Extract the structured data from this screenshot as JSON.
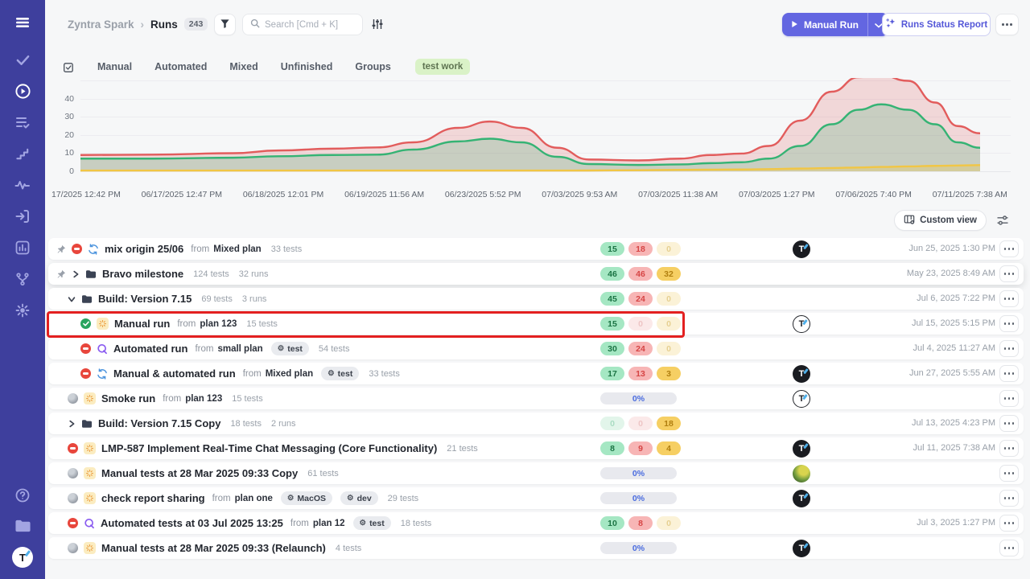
{
  "app": {
    "accent": "#6366e1",
    "sidebar_bg": "#3e3f9d",
    "page_bg": "#f6f7f8"
  },
  "sidebar": {
    "icons": [
      "menu-icon",
      "tasks-check-icon",
      "runs-play-icon",
      "test-cases-icon",
      "steps-icon",
      "activity-icon",
      "imports-icon",
      "reports-icon",
      "workflows-icon",
      "settings-gear-icon",
      "help-icon",
      "projects-folder-icon"
    ],
    "active_item": "runs",
    "avatar_letter": "T"
  },
  "header": {
    "breadcrumb": {
      "project": "Zyntra Spark",
      "separator": "›",
      "page": "Runs",
      "count": "243"
    },
    "search": {
      "placeholder": "Search [Cmd + K]"
    },
    "actions": {
      "manual_run": "Manual Run",
      "runs_status_report": "Runs Status Report"
    }
  },
  "tabs": {
    "items": [
      "Manual",
      "Automated",
      "Mixed",
      "Unfinished",
      "Groups"
    ],
    "highlight_tag": "test work"
  },
  "chart_data": {
    "type": "area",
    "stacked": false,
    "grid": true,
    "ylim": [
      0,
      50
    ],
    "y_ticks": [
      "40",
      "30",
      "20",
      "10",
      "0"
    ],
    "x_tick_labels": [
      "17/2025 12:42 PM",
      "06/17/2025 12:47 PM",
      "06/18/2025 12:01 PM",
      "06/19/2025 11:56 AM",
      "06/23/2025 5:52 PM",
      "07/03/2025 9:53 AM",
      "07/03/2025 11:38 AM",
      "07/03/2025 1:27 PM",
      "07/06/2025 7:40 PM",
      "07/11/2025 7:38 AM"
    ],
    "x": [
      0,
      0.08,
      0.17,
      0.22,
      0.28,
      0.33,
      0.37,
      0.42,
      0.455,
      0.49,
      0.53,
      0.565,
      0.62,
      0.667,
      0.7,
      0.735,
      0.765,
      0.8,
      0.835,
      0.865,
      0.89,
      0.92,
      0.95,
      0.975,
      1.0
    ],
    "series": [
      {
        "name": "failed",
        "color": "#e25c5c",
        "fill": "rgba(226,92,92,0.20)",
        "values": [
          9,
          9.2,
          10,
          11.5,
          12.5,
          13.2,
          16,
          24,
          27.5,
          24,
          13,
          6.5,
          6,
          7,
          9,
          9.8,
          14,
          28,
          44,
          52,
          53,
          50,
          38,
          25,
          21
        ]
      },
      {
        "name": "passed",
        "color": "#35b374",
        "fill": "rgba(53,179,116,0.22)",
        "values": [
          7,
          7,
          7.5,
          8.3,
          9,
          9.2,
          12,
          16.5,
          18,
          16,
          8,
          4,
          3.5,
          3.8,
          4.5,
          5,
          7,
          14,
          26,
          34,
          37,
          34,
          26,
          16,
          13
        ]
      },
      {
        "name": "untested",
        "color": "#f1c645",
        "fill": "rgba(241,198,69,0.30)",
        "values": [
          0.4,
          0.4,
          0.4,
          0.4,
          0.4,
          0.4,
          0.4,
          0.4,
          0.4,
          0.4,
          0.4,
          0.45,
          0.6,
          0.8,
          0.9,
          1.0,
          1.2,
          1.5,
          1.8,
          2.1,
          2.4,
          2.7,
          3.0,
          3.2,
          3.4
        ]
      }
    ]
  },
  "view_toolbar": {
    "custom_view": "Custom view"
  },
  "run_list": {
    "from_label": "from",
    "avatar_letter": "T",
    "status_colors": {
      "passed": "#29a45f",
      "failed": "#e8463c",
      "untested": "#f1c645"
    },
    "rows": [
      {
        "pinned": true,
        "status": "failed",
        "kind": "mixed",
        "title": "mix origin 25/06",
        "from_plan": "Mixed plan",
        "tests": "33 tests",
        "counts": [
          {
            "v": "15",
            "c": "g"
          },
          {
            "v": "18",
            "c": "r"
          },
          {
            "v": "0",
            "c": "y",
            "f": true
          }
        ],
        "avatar": "dark",
        "date": "Jun 25, 2025 1:30 PM"
      },
      {
        "pinned": true,
        "expand": "right",
        "kind": "folder",
        "title": "Bravo milestone",
        "tests": "124 tests",
        "runs": "32 runs",
        "hover": true,
        "counts": [
          {
            "v": "46",
            "c": "g"
          },
          {
            "v": "46",
            "c": "r"
          },
          {
            "v": "32",
            "c": "y"
          }
        ],
        "date": "May 23, 2025 8:49 AM"
      },
      {
        "expand": "down",
        "kind": "folder",
        "title": "Build: Version 7.15",
        "tests": "69 tests",
        "runs": "3 runs",
        "counts": [
          {
            "v": "45",
            "c": "g"
          },
          {
            "v": "24",
            "c": "r"
          },
          {
            "v": "0",
            "c": "y",
            "f": true
          }
        ],
        "date": "Jul 6, 2025 7:22 PM"
      },
      {
        "indent": 1,
        "status": "passed",
        "kind": "manual",
        "title": "Manual run",
        "from_plan": "plan 123",
        "tests": "15 tests",
        "highlighted": true,
        "counts": [
          {
            "v": "15",
            "c": "g"
          },
          {
            "v": "0",
            "c": "r",
            "f": true
          },
          {
            "v": "0",
            "c": "y",
            "f": true
          }
        ],
        "avatar": "light",
        "date": "Jul 15, 2025 5:15 PM"
      },
      {
        "indent": 1,
        "status": "failed",
        "kind": "automated",
        "title": "Automated run",
        "from_plan": "small plan",
        "tags": [
          "test"
        ],
        "tests": "54 tests",
        "counts": [
          {
            "v": "30",
            "c": "g"
          },
          {
            "v": "24",
            "c": "r"
          },
          {
            "v": "0",
            "c": "y",
            "f": true
          }
        ],
        "date": "Jul 4, 2025 11:27 AM"
      },
      {
        "indent": 1,
        "status": "failed",
        "kind": "mixed",
        "title": "Manual & automated run",
        "from_plan": "Mixed plan",
        "tags": [
          "test"
        ],
        "tests": "33 tests",
        "counts": [
          {
            "v": "17",
            "c": "g"
          },
          {
            "v": "13",
            "c": "r"
          },
          {
            "v": "3",
            "c": "y"
          }
        ],
        "avatar": "dark",
        "date": "Jun 27, 2025 5:55 AM"
      },
      {
        "status": "progress",
        "kind": "manual",
        "title": "Smoke run",
        "from_plan": "plan 123",
        "tests": "15 tests",
        "progress": "0%",
        "avatar": "light"
      },
      {
        "expand": "right",
        "kind": "folder",
        "title": "Build: Version 7.15 Copy",
        "tests": "18 tests",
        "runs": "2 runs",
        "counts": [
          {
            "v": "0",
            "c": "g",
            "f": true
          },
          {
            "v": "0",
            "c": "r",
            "f": true
          },
          {
            "v": "18",
            "c": "y"
          }
        ],
        "date": "Jul 13, 2025 4:23 PM"
      },
      {
        "status": "failed",
        "kind": "manual",
        "title": "LMP-587 Implement Real-Time Chat Messaging (Core Functionality)",
        "tests": "21 tests",
        "counts": [
          {
            "v": "8",
            "c": "g"
          },
          {
            "v": "9",
            "c": "r"
          },
          {
            "v": "4",
            "c": "y"
          }
        ],
        "avatar": "dark",
        "date": "Jul 11, 2025 7:38 AM"
      },
      {
        "status": "progress",
        "kind": "manual",
        "title": "Manual tests at 28 Mar 2025 09:33 Copy",
        "tests": "61 tests",
        "progress": "0%",
        "avatar": "photo"
      },
      {
        "status": "progress",
        "kind": "manual",
        "title": "check report sharing",
        "from_plan": "plan one",
        "tags": [
          "MacOS",
          "dev"
        ],
        "tests": "29 tests",
        "progress": "0%",
        "avatar": "dark"
      },
      {
        "status": "failed",
        "kind": "automated",
        "title": "Automated tests at 03 Jul 2025 13:25",
        "from_plan": "plan 12",
        "tags": [
          "test"
        ],
        "tests": "18 tests",
        "counts": [
          {
            "v": "10",
            "c": "g"
          },
          {
            "v": "8",
            "c": "r"
          },
          {
            "v": "0",
            "c": "y",
            "f": true
          }
        ],
        "date": "Jul 3, 2025 1:27 PM"
      },
      {
        "status": "progress",
        "kind": "manual",
        "title": "Manual tests at 28 Mar 2025 09:33 (Relaunch)",
        "tests": "4 tests",
        "progress": "0%",
        "avatar": "dark"
      }
    ]
  }
}
